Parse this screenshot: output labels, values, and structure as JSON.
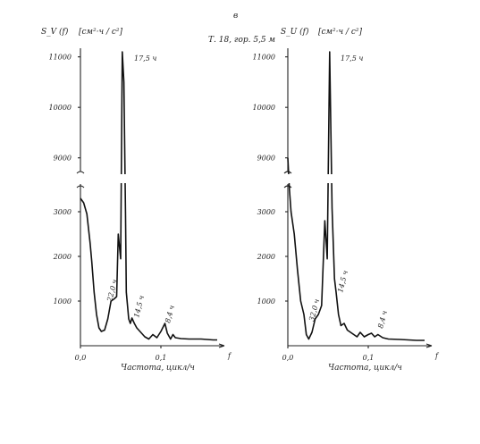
{
  "figure": {
    "panel_letter": "в",
    "station_note": "Т. 18, гор. 5,5 м"
  },
  "chart_data": [
    {
      "type": "line",
      "ylabel": "S_V (f)",
      "units": "[см²·ч / с²]",
      "xlabel": "Частота, цикл/ч",
      "xtick_labels": [
        "0,0",
        "0,1",
        "f"
      ],
      "xticks": [
        0.0,
        0.1
      ],
      "ylim_lower": [
        0,
        3500
      ],
      "ylim_upper": [
        8800,
        11100
      ],
      "yticks_lower": [
        1000,
        2000,
        3000
      ],
      "yticks_upper": [
        9000,
        10000,
        11000
      ],
      "ytick_labels_lower": [
        "1000",
        "2000",
        "3000"
      ],
      "ytick_labels_upper": [
        "9000",
        "10000",
        "11000"
      ],
      "peak_labels": [
        "17,5 ч",
        "22,0 ч",
        "14,5 ч",
        "8,4 ч"
      ],
      "series": [
        {
          "x": [
            0.0,
            0.004,
            0.008,
            0.012,
            0.014,
            0.017,
            0.02,
            0.023,
            0.026,
            0.03,
            0.034,
            0.038,
            0.042,
            0.045,
            0.047,
            0.05,
            0.052,
            0.054,
            0.056,
            0.057,
            0.06,
            0.062,
            0.064,
            0.067,
            0.07,
            0.075,
            0.08,
            0.085,
            0.09,
            0.095,
            0.1,
            0.105,
            0.108,
            0.112,
            0.115,
            0.118,
            0.125,
            0.135,
            0.15,
            0.165,
            0.17
          ],
          "y": [
            3300,
            3200,
            2950,
            2300,
            1900,
            1200,
            700,
            400,
            320,
            350,
            600,
            1000,
            1050,
            1100,
            2500,
            7000,
            11100,
            10500,
            3000,
            1200,
            600,
            500,
            620,
            500,
            400,
            300,
            200,
            150,
            250,
            180,
            320,
            500,
            280,
            150,
            250,
            180,
            160,
            150,
            150,
            130,
            130
          ]
        }
      ]
    },
    {
      "type": "line",
      "ylabel": "S_U (f)",
      "units": "[см²·ч / с²]",
      "xlabel": "Частота, цикл/ч",
      "xtick_labels": [
        "0,0",
        "0,1",
        "f"
      ],
      "xticks": [
        0.0,
        0.1
      ],
      "ylim_lower": [
        0,
        3500
      ],
      "ylim_upper": [
        8800,
        11100
      ],
      "yticks_lower": [
        1000,
        2000,
        3000
      ],
      "yticks_upper": [
        9000,
        10000,
        11000
      ],
      "ytick_labels_lower": [
        "1000",
        "2000",
        "3000"
      ],
      "ytick_labels_upper": [
        "9000",
        "10000",
        "11000"
      ],
      "peak_labels": [
        "17,5 ч",
        "32,0 ч",
        "14,5 ч",
        "8,4 ч"
      ],
      "series": [
        {
          "x": [
            0.0,
            0.002,
            0.004,
            0.008,
            0.012,
            0.016,
            0.02,
            0.023,
            0.026,
            0.03,
            0.034,
            0.038,
            0.042,
            0.046,
            0.049,
            0.052,
            0.055,
            0.058,
            0.06,
            0.063,
            0.066,
            0.07,
            0.074,
            0.078,
            0.082,
            0.086,
            0.09,
            0.095,
            0.1,
            0.104,
            0.108,
            0.112,
            0.118,
            0.125,
            0.14,
            0.16,
            0.17
          ],
          "y": [
            9000,
            3500,
            3000,
            2500,
            1700,
            1000,
            700,
            250,
            150,
            300,
            600,
            700,
            900,
            2800,
            7000,
            11100,
            8000,
            1500,
            1200,
            700,
            450,
            500,
            350,
            300,
            250,
            200,
            300,
            200,
            250,
            280,
            200,
            250,
            180,
            150,
            140,
            120,
            120
          ]
        }
      ]
    }
  ]
}
